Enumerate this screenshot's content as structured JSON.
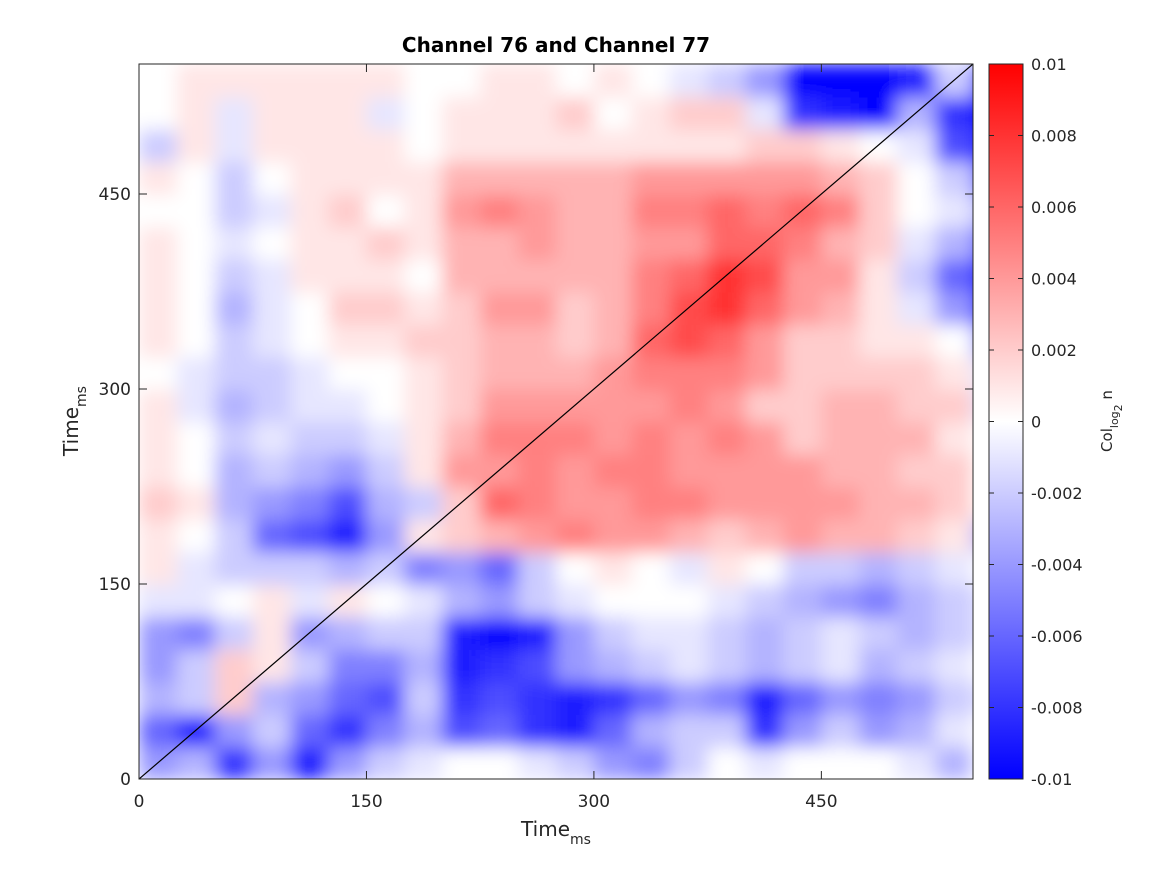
{
  "chart_data": {
    "type": "heatmap",
    "title": "Channel 76 and Channel 77",
    "xlabel": "Time",
    "xlabel_subscript": "ms",
    "ylabel": "Time",
    "ylabel_subscript": "ms",
    "xlim": [
      0,
      550
    ],
    "ylim": [
      0,
      550
    ],
    "x_ticks": [
      0,
      150,
      300,
      450
    ],
    "y_ticks": [
      0,
      150,
      300,
      450
    ],
    "colorbar": {
      "label": "Col",
      "label_subscript": "log",
      "label_subsubscript": "2",
      "label_suffix": " n",
      "range": [
        -0.01,
        0.01
      ],
      "ticks": [
        0.01,
        0.008,
        0.006,
        0.004,
        0.002,
        0,
        -0.002,
        -0.004,
        -0.006,
        -0.008,
        -0.01
      ],
      "tick_labels": [
        "0.01",
        "0.008",
        "0.006",
        "0.004",
        "0.002",
        "0",
        "-0.002",
        "-0.004",
        "-0.006",
        "-0.008",
        "-0.01"
      ],
      "colormap": [
        "#0000ff",
        "#ffffff",
        "#ff0000"
      ]
    },
    "diagonal_line": {
      "from": [
        0,
        0
      ],
      "to": [
        550,
        550
      ],
      "color": "#000000"
    },
    "grid_resolution_ms": 25,
    "approx_values_rows_low_to_high_y": [
      [
        -0.004,
        -0.003,
        -0.008,
        -0.004,
        -0.009,
        -0.004,
        -0.002,
        -0.001,
        0.0,
        0.0,
        -0.001,
        -0.002,
        -0.004,
        -0.005,
        -0.002,
        0.0,
        -0.001,
        0.0,
        0.0,
        0.0,
        -0.001,
        -0.003,
        0.0
      ],
      [
        -0.006,
        -0.009,
        -0.004,
        -0.002,
        -0.006,
        -0.008,
        -0.005,
        -0.003,
        -0.007,
        -0.006,
        -0.008,
        -0.009,
        -0.006,
        -0.003,
        -0.002,
        -0.002,
        -0.008,
        -0.004,
        -0.002,
        -0.004,
        -0.003,
        -0.001,
        0.0
      ],
      [
        -0.003,
        -0.002,
        0.002,
        -0.003,
        -0.004,
        -0.006,
        -0.007,
        -0.002,
        -0.008,
        -0.007,
        -0.008,
        -0.009,
        -0.008,
        -0.006,
        -0.004,
        -0.005,
        -0.009,
        -0.006,
        -0.004,
        -0.005,
        -0.004,
        -0.002,
        -0.001
      ],
      [
        -0.004,
        -0.002,
        0.002,
        0.001,
        -0.002,
        -0.005,
        -0.005,
        -0.003,
        -0.009,
        -0.008,
        -0.007,
        -0.004,
        -0.003,
        -0.002,
        -0.001,
        -0.002,
        -0.003,
        -0.002,
        -0.001,
        -0.003,
        -0.002,
        -0.001,
        0.0
      ],
      [
        -0.004,
        -0.005,
        -0.002,
        0.001,
        -0.004,
        -0.003,
        -0.002,
        -0.002,
        -0.009,
        -0.01,
        -0.009,
        -0.004,
        -0.002,
        -0.001,
        -0.001,
        -0.002,
        -0.003,
        -0.002,
        -0.001,
        -0.002,
        -0.003,
        -0.002,
        -0.001
      ],
      [
        -0.001,
        -0.001,
        0.0,
        0.001,
        -0.001,
        0.001,
        0.0,
        -0.001,
        -0.003,
        -0.004,
        -0.002,
        -0.001,
        0.0,
        0.0,
        0.0,
        -0.001,
        -0.002,
        -0.003,
        -0.004,
        -0.005,
        -0.003,
        -0.002,
        -0.001
      ],
      [
        0.001,
        -0.001,
        -0.002,
        -0.002,
        -0.002,
        -0.003,
        -0.002,
        -0.005,
        -0.004,
        -0.006,
        -0.002,
        0.0,
        0.001,
        0.0,
        -0.001,
        0.001,
        0.0,
        -0.002,
        -0.002,
        -0.003,
        -0.002,
        -0.001,
        0.0
      ],
      [
        0.001,
        0.0,
        -0.002,
        -0.006,
        -0.007,
        -0.009,
        -0.004,
        0.001,
        0.002,
        0.003,
        0.004,
        0.005,
        0.004,
        0.004,
        0.003,
        0.002,
        0.003,
        0.004,
        0.003,
        0.003,
        0.002,
        0.001,
        -0.003
      ],
      [
        0.002,
        0.001,
        -0.003,
        -0.004,
        -0.005,
        -0.007,
        -0.003,
        -0.002,
        0.002,
        0.006,
        0.005,
        0.004,
        0.004,
        0.005,
        0.005,
        0.004,
        0.004,
        0.004,
        0.004,
        0.003,
        0.003,
        0.002,
        0.0
      ],
      [
        0.001,
        0.0,
        -0.003,
        -0.002,
        -0.003,
        -0.004,
        -0.002,
        0.001,
        0.004,
        0.004,
        0.005,
        0.004,
        0.005,
        0.005,
        0.004,
        0.004,
        0.004,
        0.004,
        0.003,
        0.003,
        0.002,
        0.002,
        0.0
      ],
      [
        0.001,
        0.0,
        -0.002,
        -0.001,
        -0.002,
        -0.002,
        -0.001,
        0.001,
        0.003,
        0.005,
        0.005,
        0.005,
        0.004,
        0.005,
        0.004,
        0.005,
        0.004,
        0.002,
        0.003,
        0.003,
        0.003,
        0.001,
        0.0
      ],
      [
        0.001,
        -0.001,
        -0.003,
        -0.002,
        -0.001,
        -0.001,
        0.0,
        0.001,
        0.002,
        0.004,
        0.004,
        0.004,
        0.004,
        0.004,
        0.005,
        0.004,
        0.002,
        0.002,
        0.003,
        0.003,
        0.002,
        0.002,
        -0.001
      ],
      [
        0.0,
        -0.001,
        -0.002,
        -0.002,
        -0.001,
        0.0,
        0.0,
        0.001,
        0.002,
        0.003,
        0.003,
        0.003,
        0.004,
        0.005,
        0.005,
        0.005,
        0.004,
        0.002,
        0.002,
        0.002,
        0.002,
        0.001,
        -0.001
      ],
      [
        0.001,
        0.0,
        -0.002,
        -0.001,
        0.0,
        0.001,
        0.001,
        0.002,
        0.002,
        0.003,
        0.003,
        0.002,
        0.003,
        0.006,
        0.007,
        0.006,
        0.004,
        0.002,
        0.002,
        0.001,
        0.001,
        0.0,
        -0.004
      ],
      [
        0.001,
        0.0,
        -0.003,
        -0.001,
        0.0,
        0.002,
        0.002,
        0.001,
        0.002,
        0.004,
        0.004,
        0.002,
        0.003,
        0.005,
        0.007,
        0.008,
        0.006,
        0.004,
        0.003,
        0.001,
        -0.001,
        -0.004,
        -0.008
      ],
      [
        0.001,
        0.0,
        -0.002,
        -0.001,
        0.001,
        0.001,
        0.001,
        0.0,
        0.003,
        0.003,
        0.003,
        0.003,
        0.003,
        0.005,
        0.006,
        0.008,
        0.007,
        0.004,
        0.004,
        0.001,
        -0.002,
        -0.006,
        -0.009
      ],
      [
        0.001,
        0.0,
        -0.001,
        0.0,
        0.001,
        0.001,
        0.002,
        0.001,
        0.003,
        0.003,
        0.004,
        0.003,
        0.003,
        0.004,
        0.004,
        0.006,
        0.006,
        0.005,
        0.003,
        0.002,
        -0.001,
        -0.003,
        -0.006
      ],
      [
        0.0,
        0.0,
        -0.002,
        -0.001,
        0.001,
        0.002,
        0.0,
        0.001,
        0.004,
        0.005,
        0.004,
        0.003,
        0.003,
        0.005,
        0.005,
        0.006,
        0.005,
        0.006,
        0.005,
        0.002,
        0.0,
        -0.001,
        -0.003
      ],
      [
        0.001,
        0.0,
        -0.002,
        0.0,
        0.001,
        0.001,
        0.001,
        0.001,
        0.003,
        0.003,
        0.003,
        0.003,
        0.003,
        0.004,
        0.004,
        0.004,
        0.004,
        0.004,
        0.003,
        0.002,
        0.0,
        -0.002,
        -0.006
      ],
      [
        -0.002,
        0.001,
        -0.001,
        0.001,
        0.001,
        0.001,
        0.001,
        0.0,
        0.001,
        0.001,
        0.001,
        0.001,
        0.001,
        0.001,
        0.001,
        0.001,
        0.002,
        0.002,
        0.001,
        0.0,
        -0.001,
        -0.007,
        -0.009
      ],
      [
        0.0,
        0.001,
        -0.001,
        0.001,
        0.001,
        0.001,
        -0.001,
        0.0,
        0.001,
        0.001,
        0.001,
        0.002,
        0.0,
        0.001,
        0.002,
        0.002,
        -0.001,
        -0.008,
        -0.009,
        -0.01,
        -0.003,
        -0.008,
        -0.01
      ],
      [
        0.0,
        0.001,
        0.001,
        0.001,
        0.001,
        0.001,
        0.001,
        0.0,
        0.0,
        0.001,
        0.001,
        0.0,
        0.001,
        0.0,
        -0.001,
        -0.002,
        -0.004,
        -0.01,
        -0.01,
        -0.01,
        -0.009,
        -0.002,
        -0.008
      ]
    ]
  }
}
